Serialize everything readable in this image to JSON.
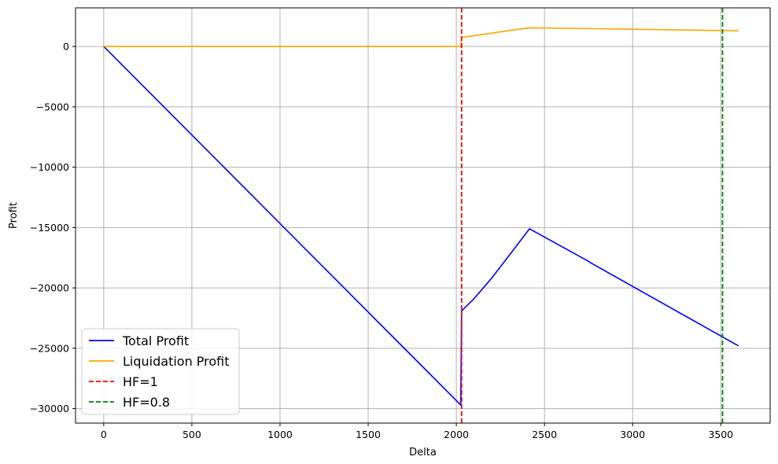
{
  "chart_data": {
    "type": "line",
    "title": "",
    "xlabel": "Delta",
    "ylabel": "Profit",
    "xlim": [
      -160,
      3780
    ],
    "ylim": [
      -31200,
      3200
    ],
    "xticks": [
      0,
      500,
      1000,
      1500,
      2000,
      2500,
      3000,
      3500
    ],
    "yticks": [
      0,
      -5000,
      -10000,
      -15000,
      -20000,
      -25000,
      -30000
    ],
    "xtick_labels": [
      "0",
      "500",
      "1000",
      "1500",
      "2000",
      "2500",
      "3000",
      "3500"
    ],
    "ytick_labels": [
      "0",
      "−5000",
      "−10000",
      "−15000",
      "−20000",
      "−25000",
      "−30000"
    ],
    "grid": true,
    "legend_position": "lower-left",
    "series": [
      {
        "name": "Total Profit",
        "color": "#0000ff",
        "style": "solid",
        "points": [
          [
            0,
            0
          ],
          [
            2025,
            -29700
          ],
          [
            2030,
            -21900
          ],
          [
            2100,
            -20900
          ],
          [
            2200,
            -19200
          ],
          [
            2300,
            -17300
          ],
          [
            2415,
            -15100
          ],
          [
            2750,
            -17800
          ],
          [
            2760,
            -17900
          ],
          [
            3600,
            -24800
          ]
        ]
      },
      {
        "name": "Liquidation Profit",
        "color": "#ffa500",
        "style": "solid",
        "points": [
          [
            0,
            0
          ],
          [
            2025,
            0
          ],
          [
            2030,
            750
          ],
          [
            2415,
            1550
          ],
          [
            3600,
            1300
          ]
        ]
      }
    ],
    "vlines": [
      {
        "name": "HF=1",
        "x": 2030,
        "color": "#ff0000",
        "style": "dashed"
      },
      {
        "name": "HF=0.8",
        "x": 3510,
        "color": "#008000",
        "style": "dashed"
      }
    ]
  }
}
